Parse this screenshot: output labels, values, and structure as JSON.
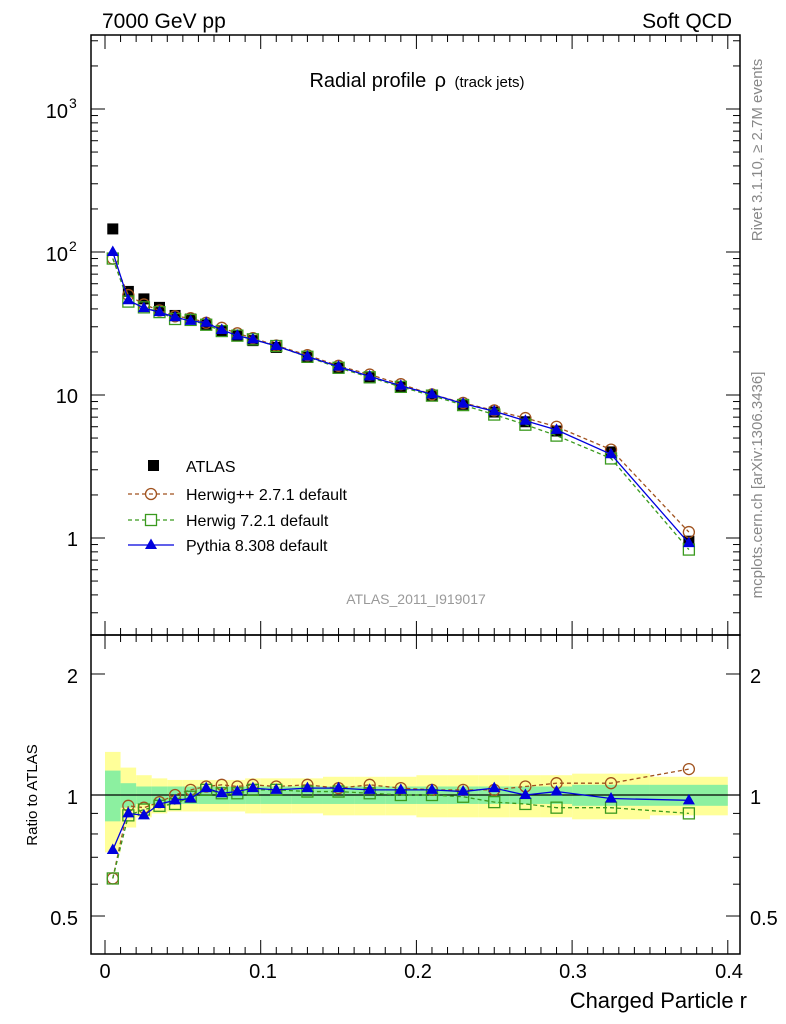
{
  "header": {
    "left": "7000 GeV pp",
    "right": "Soft QCD"
  },
  "side_text": {
    "rivet": "Rivet 3.1.10, ≥ 2.7M events",
    "mcplots": "mcplots.cern.ch [arXiv:1306.3436]"
  },
  "watermark": "ATLAS_2011_I919017",
  "colors": {
    "data": "#000000",
    "herwigpp": "#a0521e",
    "herwig7": "#3a9a1e",
    "pythia": "#0000dd",
    "band_inner": "#8cf0a0",
    "band_outer": "#ffff99"
  },
  "chart_data": [
    {
      "type": "line",
      "title_main": "Radial profile",
      "title_symbol": "ρ",
      "title_sub": "(track jets)",
      "yscale": "log",
      "ylim": [
        0.25,
        3000
      ],
      "xlim": [
        -0.01,
        0.4
      ],
      "y_tick_labels": [
        "1",
        "10",
        "10",
        "10"
      ],
      "y_tick_exponents": [
        "",
        "",
        "2",
        "3"
      ],
      "legend_position": "bottom-left",
      "x": [
        0.005,
        0.015,
        0.025,
        0.035,
        0.045,
        0.055,
        0.065,
        0.075,
        0.085,
        0.095,
        0.11,
        0.13,
        0.15,
        0.17,
        0.19,
        0.21,
        0.23,
        0.25,
        0.27,
        0.29,
        0.325,
        0.375
      ],
      "series": [
        {
          "name": "ATLAS",
          "style": "data",
          "values": [
            145,
            53,
            47,
            41,
            36,
            34,
            31,
            28,
            26,
            24,
            21.5,
            18.3,
            15.4,
            13.2,
            11.4,
            9.9,
            8.6,
            7.6,
            6.5,
            5.6,
            4.0,
            0.95
          ]
        },
        {
          "name": "Herwig++ 2.7.1 default",
          "style": "herwigpp",
          "values": [
            90,
            50,
            43,
            39,
            35.5,
            34.5,
            32,
            29.5,
            27,
            25,
            22.2,
            19,
            16,
            13.9,
            11.9,
            10.1,
            8.8,
            7.8,
            6.9,
            6.0,
            4.15,
            1.1
          ]
        },
        {
          "name": "Herwig 7.2.1 default",
          "style": "herwig7",
          "values": [
            90,
            45,
            41,
            38,
            34,
            33.5,
            31,
            28,
            26,
            24.5,
            22,
            18.5,
            15.5,
            13.3,
            11.4,
            9.9,
            8.5,
            7.3,
            6.2,
            5.2,
            3.6,
            0.83
          ]
        },
        {
          "name": "Pythia 8.308 default",
          "style": "pythia",
          "values": [
            100,
            46,
            40.5,
            38,
            35,
            33,
            32,
            28.5,
            26,
            24.5,
            22,
            18.6,
            15.8,
            13.5,
            11.6,
            10.1,
            8.7,
            7.7,
            6.6,
            5.7,
            3.85,
            0.92
          ]
        }
      ]
    },
    {
      "type": "line",
      "ylabel": "Ratio to ATLAS",
      "xlabel": "Charged Particle r",
      "ylim": [
        0.35,
        2.3
      ],
      "xlim": [
        -0.01,
        0.4
      ],
      "y_ticks": [
        0.5,
        1,
        2
      ],
      "y_tick_labels": [
        "0.5",
        "1",
        "2"
      ],
      "x_ticks": [
        0,
        0.1,
        0.2,
        0.3,
        0.4
      ],
      "x_tick_labels": [
        "0",
        "0.1",
        "0.2",
        "0.3",
        "0.4"
      ],
      "x": [
        0.005,
        0.015,
        0.025,
        0.035,
        0.045,
        0.055,
        0.065,
        0.075,
        0.085,
        0.095,
        0.11,
        0.13,
        0.15,
        0.17,
        0.19,
        0.21,
        0.23,
        0.25,
        0.27,
        0.29,
        0.325,
        0.375
      ],
      "bin_edges": [
        0,
        0.01,
        0.02,
        0.03,
        0.04,
        0.05,
        0.06,
        0.07,
        0.08,
        0.09,
        0.1,
        0.12,
        0.14,
        0.16,
        0.18,
        0.2,
        0.22,
        0.24,
        0.26,
        0.28,
        0.3,
        0.35,
        0.4
      ],
      "band_inner": [
        [
          0.86,
          1.15
        ],
        [
          0.93,
          1.07
        ],
        [
          0.95,
          1.05
        ],
        [
          0.95,
          1.05
        ],
        [
          0.95,
          1.05
        ],
        [
          0.95,
          1.05
        ],
        [
          0.95,
          1.05
        ],
        [
          0.95,
          1.05
        ],
        [
          0.95,
          1.05
        ],
        [
          0.95,
          1.05
        ],
        [
          0.95,
          1.05
        ],
        [
          0.95,
          1.05
        ],
        [
          0.95,
          1.05
        ],
        [
          0.95,
          1.05
        ],
        [
          0.95,
          1.05
        ],
        [
          0.95,
          1.05
        ],
        [
          0.95,
          1.05
        ],
        [
          0.95,
          1.05
        ],
        [
          0.95,
          1.05
        ],
        [
          0.95,
          1.05
        ],
        [
          0.94,
          1.06
        ],
        [
          0.94,
          1.06
        ]
      ],
      "band_outer": [
        [
          0.72,
          1.28
        ],
        [
          0.83,
          1.17
        ],
        [
          0.88,
          1.12
        ],
        [
          0.9,
          1.1
        ],
        [
          0.91,
          1.09
        ],
        [
          0.91,
          1.09
        ],
        [
          0.91,
          1.09
        ],
        [
          0.91,
          1.09
        ],
        [
          0.91,
          1.09
        ],
        [
          0.9,
          1.1
        ],
        [
          0.9,
          1.1
        ],
        [
          0.9,
          1.1
        ],
        [
          0.89,
          1.11
        ],
        [
          0.89,
          1.11
        ],
        [
          0.89,
          1.11
        ],
        [
          0.88,
          1.12
        ],
        [
          0.88,
          1.12
        ],
        [
          0.88,
          1.12
        ],
        [
          0.88,
          1.12
        ],
        [
          0.88,
          1.12
        ],
        [
          0.87,
          1.13
        ],
        [
          0.89,
          1.11
        ]
      ],
      "series": [
        {
          "name": "Herwig++ 2.7.1 default",
          "style": "herwigpp",
          "values": [
            0.62,
            0.94,
            0.93,
            0.96,
            1.0,
            1.03,
            1.05,
            1.06,
            1.05,
            1.06,
            1.05,
            1.06,
            1.04,
            1.06,
            1.04,
            1.03,
            1.03,
            1.03,
            1.05,
            1.07,
            1.07,
            1.16
          ]
        },
        {
          "name": "Herwig 7.2.1 default",
          "style": "herwig7",
          "values": [
            0.62,
            0.89,
            0.92,
            0.94,
            0.95,
            0.99,
            1.03,
            1.01,
            1.01,
            1.03,
            1.03,
            1.02,
            1.02,
            1.01,
            1.0,
            1.0,
            0.99,
            0.96,
            0.95,
            0.93,
            0.93,
            0.9
          ]
        },
        {
          "name": "Pythia 8.308 default",
          "style": "pythia",
          "values": [
            0.73,
            0.9,
            0.89,
            0.95,
            0.97,
            0.98,
            1.04,
            1.01,
            1.02,
            1.04,
            1.03,
            1.04,
            1.04,
            1.03,
            1.03,
            1.03,
            1.02,
            1.04,
            1.0,
            1.02,
            0.98,
            0.97
          ]
        }
      ]
    }
  ]
}
